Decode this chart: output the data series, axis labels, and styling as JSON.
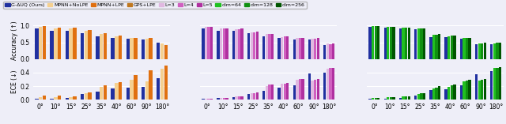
{
  "categories": [
    "0°",
    "10°",
    "15°",
    "25°",
    "35°",
    "40°",
    "60°",
    "90°",
    "180°"
  ],
  "panel1": {
    "series": {
      "G-ΔUQ (Ours)": [
        0.91,
        0.85,
        0.84,
        0.78,
        0.68,
        0.63,
        0.6,
        0.58,
        0.48
      ],
      "MPNN+NoLPE": [
        0.96,
        0.92,
        0.91,
        0.83,
        0.74,
        0.67,
        0.62,
        0.6,
        0.47
      ],
      "MPNN+LPE": [
        0.97,
        0.93,
        0.93,
        0.86,
        0.77,
        0.69,
        0.64,
        0.62,
        0.43
      ]
    },
    "ece_series": {
      "G-ΔUQ (Ours)": [
        0.02,
        0.02,
        0.03,
        0.08,
        0.12,
        0.17,
        0.18,
        0.19,
        0.32
      ],
      "MPNN+NoLPE": [
        0.04,
        0.04,
        0.04,
        0.1,
        0.19,
        0.25,
        0.29,
        0.27,
        0.45
      ],
      "MPNN+LPE": [
        0.06,
        0.06,
        0.05,
        0.11,
        0.21,
        0.26,
        0.36,
        0.43,
        0.5
      ]
    },
    "colors": {
      "G-ΔUQ (Ours)": "#2030a0",
      "MPNN+NoLPE": "#f5d090",
      "MPNN+LPE": "#e07010"
    }
  },
  "panel2": {
    "series": {
      "G-ΔUQ (Ours)": [
        0.91,
        0.85,
        0.84,
        0.78,
        0.68,
        0.63,
        0.58,
        0.58,
        0.42
      ],
      "L=3": [
        0.95,
        0.91,
        0.88,
        0.8,
        0.75,
        0.65,
        0.62,
        0.6,
        0.46
      ],
      "L=4": [
        0.96,
        0.91,
        0.89,
        0.8,
        0.74,
        0.67,
        0.63,
        0.61,
        0.45
      ],
      "L=5": [
        0.96,
        0.91,
        0.9,
        0.81,
        0.75,
        0.68,
        0.64,
        0.62,
        0.46
      ]
    },
    "ece_series": {
      "G-ΔUQ (Ours)": [
        0.02,
        0.03,
        0.04,
        0.09,
        0.13,
        0.18,
        0.21,
        0.39,
        0.4
      ],
      "L=3": [
        0.02,
        0.03,
        0.05,
        0.1,
        0.2,
        0.23,
        0.29,
        0.28,
        0.46
      ],
      "L=4": [
        0.02,
        0.03,
        0.05,
        0.1,
        0.22,
        0.24,
        0.3,
        0.29,
        0.47
      ],
      "L=5": [
        0.02,
        0.03,
        0.05,
        0.11,
        0.22,
        0.25,
        0.3,
        0.3,
        0.47
      ]
    },
    "colors": {
      "G-ΔUQ (Ours)": "#2030a0",
      "L=3": "#e0b8e0",
      "L=4": "#d060c0",
      "L=5": "#b030a0"
    }
  },
  "panel3": {
    "series": {
      "G-ΔUQ (Ours)": [
        0.96,
        0.93,
        0.91,
        0.88,
        0.66,
        0.65,
        0.6,
        0.44,
        0.44
      ],
      "dim=64": [
        0.97,
        0.95,
        0.93,
        0.9,
        0.72,
        0.68,
        0.63,
        0.47,
        0.47
      ],
      "dim=128": [
        0.97,
        0.95,
        0.94,
        0.9,
        0.73,
        0.69,
        0.64,
        0.47,
        0.48
      ],
      "dim=256": [
        0.97,
        0.95,
        0.94,
        0.91,
        0.74,
        0.7,
        0.64,
        0.48,
        0.48
      ]
    },
    "ece_series": {
      "G-ΔUQ (Ours)": [
        0.02,
        0.02,
        0.03,
        0.06,
        0.14,
        0.16,
        0.21,
        0.38,
        0.42
      ],
      "dim=64": [
        0.03,
        0.04,
        0.05,
        0.09,
        0.17,
        0.19,
        0.27,
        0.28,
        0.47
      ],
      "dim=128": [
        0.03,
        0.04,
        0.05,
        0.1,
        0.18,
        0.21,
        0.28,
        0.29,
        0.47
      ],
      "dim=256": [
        0.03,
        0.04,
        0.05,
        0.1,
        0.2,
        0.22,
        0.29,
        0.3,
        0.48
      ]
    },
    "colors": {
      "G-ΔUQ (Ours)": "#2030a0",
      "dim=64": "#20c020",
      "dim=128": "#109010",
      "dim=256": "#005500"
    }
  },
  "legend_entries": [
    {
      "label": "G-ΔUQ (Ours)",
      "color": "#2030a0"
    },
    {
      "label": "MPNN+NoLPE",
      "color": "#f5d090"
    },
    {
      "label": "MPNN+LPE",
      "color": "#e07010"
    },
    {
      "label": "GPS+LPE",
      "color": "#c07820"
    },
    {
      "label": "L=3",
      "color": "#e0b8e0"
    },
    {
      "label": "L=4",
      "color": "#d060c0"
    },
    {
      "label": "L=5",
      "color": "#b030a0"
    },
    {
      "label": "dim=64",
      "color": "#20c020"
    },
    {
      "label": "dim=128",
      "color": "#109010"
    },
    {
      "label": "dim=256",
      "color": "#005500"
    }
  ],
  "ylim_acc": [
    0.0,
    1.09
  ],
  "ylim_ece": [
    0.0,
    0.54
  ],
  "yticks_acc": [
    0.0,
    0.5,
    1.0
  ],
  "yticks_ece": [
    0.0,
    0.2,
    0.4
  ],
  "acc_ylabel": "Accuracy (↑)",
  "ece_ylabel": "ECE (↓)",
  "bg": "#eeeef8"
}
